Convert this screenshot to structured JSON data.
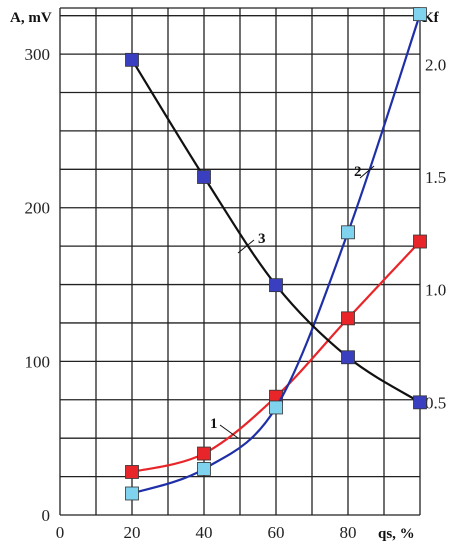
{
  "chart_data": {
    "type": "line",
    "title": "",
    "xlabel": "qs, %",
    "ylabel_left": "A, mV",
    "ylabel_right": "Kf",
    "x_ticks": [
      "0",
      "20",
      "40",
      "60",
      "80"
    ],
    "y_left_ticks": [
      "0",
      "100",
      "200",
      "300"
    ],
    "y_right_ticks": [
      "0.5",
      "1.0",
      "1.5",
      "2.0"
    ],
    "xlim": [
      0,
      100
    ],
    "ylim_left": [
      0,
      330
    ],
    "ylim_right": [
      0,
      2.25
    ],
    "grid": true,
    "series": [
      {
        "name": "1",
        "axis": "left",
        "color": "#e8262a",
        "marker": "square",
        "x": [
          20,
          40,
          60,
          80,
          100
        ],
        "y": [
          28,
          40,
          77,
          128,
          178
        ]
      },
      {
        "name": "2",
        "axis": "left",
        "color": "#1f2fa8",
        "marker_color": "#7fd3ee",
        "marker": "square",
        "x": [
          20,
          40,
          60,
          80,
          100
        ],
        "y": [
          14,
          30,
          70,
          184,
          326
        ]
      },
      {
        "name": "3",
        "axis": "right",
        "color": "#111111",
        "marker_color": "#3a3fc0",
        "marker": "square",
        "x": [
          20,
          40,
          60,
          80,
          100
        ],
        "y": [
          2.02,
          1.5,
          1.02,
          0.7,
          0.5
        ]
      }
    ]
  }
}
